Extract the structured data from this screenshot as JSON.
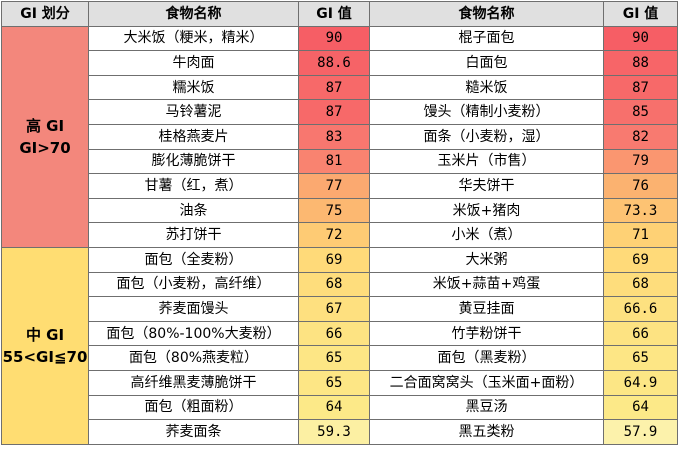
{
  "headers": {
    "category": "GI 划分",
    "food_left": "食物名称",
    "gi_left": "GI 值",
    "food_right": "食物名称",
    "gi_right": "GI 值"
  },
  "groups": [
    {
      "label_line1": "高 GI",
      "label_line2": "GI>70",
      "color": "#f3877c",
      "rows": [
        {
          "food_left": "大米饭（粳米，精米）",
          "gi_left": "90",
          "food_right": "棍子面包",
          "gi_right": "90"
        },
        {
          "food_left": "牛肉面",
          "gi_left": "88.6",
          "food_right": "白面包",
          "gi_right": "88"
        },
        {
          "food_left": "糯米饭",
          "gi_left": "87",
          "food_right": "糙米饭",
          "gi_right": "87"
        },
        {
          "food_left": "马铃薯泥",
          "gi_left": "87",
          "food_right": "馒头（精制小麦粉）",
          "gi_right": "85"
        },
        {
          "food_left": "桂格燕麦片",
          "gi_left": "83",
          "food_right": "面条（小麦粉，湿）",
          "gi_right": "82"
        },
        {
          "food_left": "膨化薄脆饼干",
          "gi_left": "81",
          "food_right": "玉米片（市售）",
          "gi_right": "79"
        },
        {
          "food_left": "甘薯（红，煮）",
          "gi_left": "77",
          "food_right": "华夫饼干",
          "gi_right": "76"
        },
        {
          "food_left": "油条",
          "gi_left": "75",
          "food_right": "米饭+猪肉",
          "gi_right": "73.3"
        },
        {
          "food_left": "苏打饼干",
          "gi_left": "72",
          "food_right": "小米（煮）",
          "gi_right": "71"
        }
      ]
    },
    {
      "label_line1": "中 GI",
      "label_line2": "55<GI≦70",
      "color": "#ffdd72",
      "rows": [
        {
          "food_left": "面包（全麦粉）",
          "gi_left": "69",
          "food_right": "大米粥",
          "gi_right": "69"
        },
        {
          "food_left": "面包（小麦粉，高纤维）",
          "gi_left": "68",
          "food_right": "米饭+蒜苗+鸡蛋",
          "gi_right": "68"
        },
        {
          "food_left": "荞麦面馒头",
          "gi_left": "67",
          "food_right": "黄豆挂面",
          "gi_right": "66.6"
        },
        {
          "food_left": "面包（80%-100%大麦粉）",
          "gi_left": "66",
          "food_right": "竹芋粉饼干",
          "gi_right": "66"
        },
        {
          "food_left": "面包（80%燕麦粒）",
          "gi_left": "65",
          "food_right": "面包（黑麦粉）",
          "gi_right": "65"
        },
        {
          "food_left": "高纤维黑麦薄脆饼干",
          "gi_left": "65",
          "food_right": "二合面窝窝头（玉米面+面粉）",
          "gi_right": "64.9"
        },
        {
          "food_left": "面包（粗面粉）",
          "gi_left": "64",
          "food_right": "黑豆汤",
          "gi_right": "64"
        },
        {
          "food_left": "荞麦面条",
          "gi_left": "59.3",
          "food_right": "黑五类粉",
          "gi_right": "57.9"
        }
      ]
    }
  ]
}
